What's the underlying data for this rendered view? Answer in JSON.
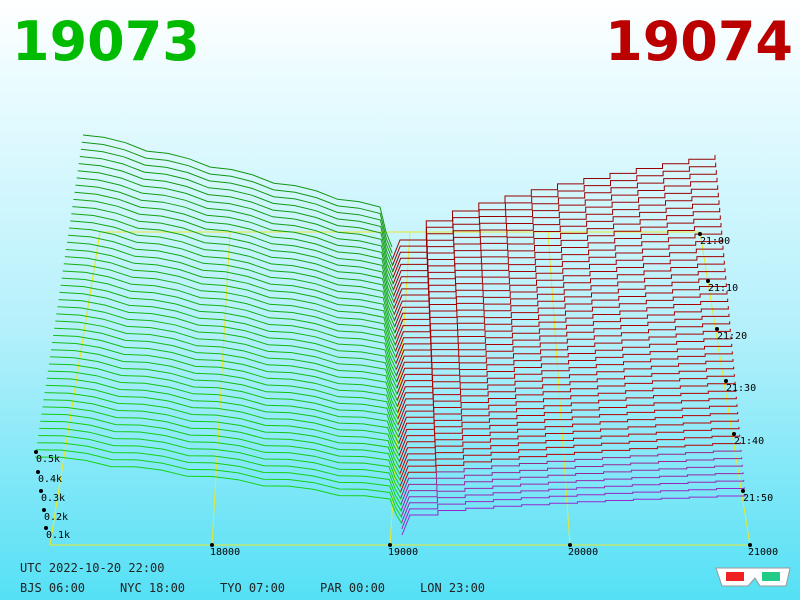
{
  "bid_price": "19073",
  "ask_price": "19074",
  "price_axis": {
    "ticks": [
      "18000",
      "19000",
      "20000",
      "21000"
    ]
  },
  "depth_axis": {
    "ticks": [
      "0.1k",
      "0.2k",
      "0.3k",
      "0.4k",
      "0.5k"
    ]
  },
  "time_axis": {
    "ticks": [
      "21:00",
      "21:10",
      "21:20",
      "21:30",
      "21:40",
      "21:50"
    ]
  },
  "clock": {
    "utc": "UTC 2022-10-20 22:00",
    "zones": [
      "BJS 06:00",
      "NYC 18:00",
      "TYO 07:00",
      "PAR 00:00",
      "LON 23:00"
    ]
  }
}
